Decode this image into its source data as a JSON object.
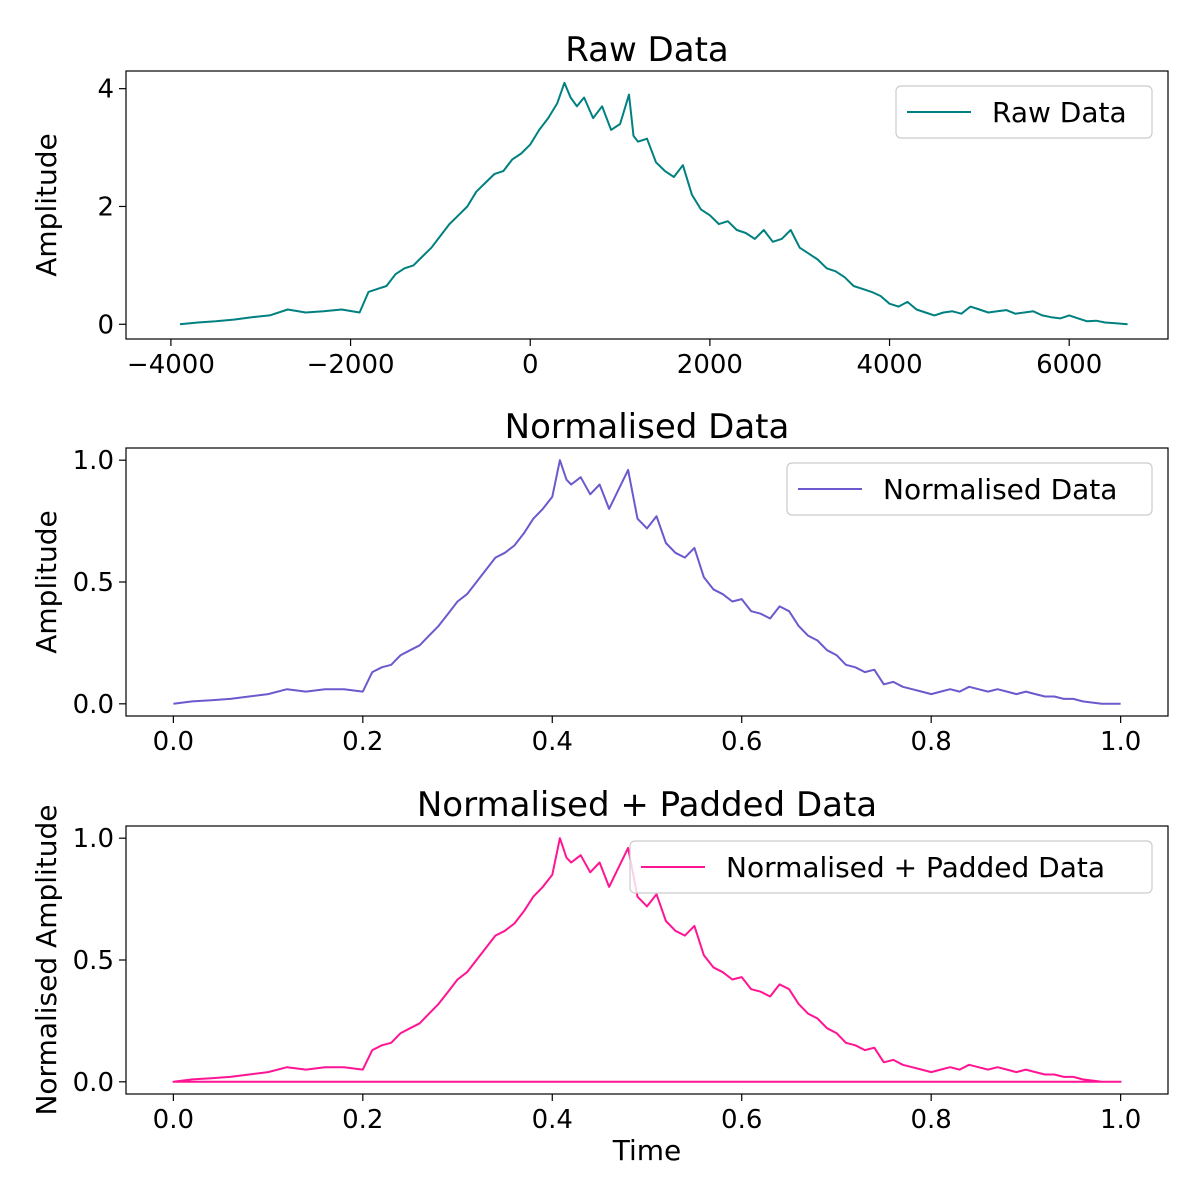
{
  "chart_data": [
    {
      "type": "line",
      "title": "Raw Data",
      "xlabel": "",
      "ylabel": "Amplitude",
      "xlim": [
        -4500,
        7100
      ],
      "ylim": [
        -0.25,
        4.3
      ],
      "xticks": [
        -4000,
        -2000,
        0,
        2000,
        4000,
        6000
      ],
      "xtick_labels": [
        "−4000",
        "−2000",
        "0",
        "2000",
        "4000",
        "6000"
      ],
      "yticks": [
        0,
        2,
        4
      ],
      "ytick_labels": [
        "0",
        "2",
        "4"
      ],
      "legend": "upper right",
      "grid": false,
      "series": [
        {
          "name": "Raw Data",
          "color": "#008080",
          "x": [
            -3900,
            -3700,
            -3500,
            -3300,
            -3100,
            -2900,
            -2700,
            -2500,
            -2300,
            -2100,
            -1900,
            -1800,
            -1700,
            -1600,
            -1500,
            -1400,
            -1300,
            -1200,
            -1100,
            -1000,
            -900,
            -800,
            -700,
            -600,
            -500,
            -400,
            -300,
            -200,
            -100,
            0,
            100,
            200,
            300,
            380,
            450,
            520,
            600,
            700,
            800,
            900,
            1000,
            1100,
            1150,
            1200,
            1300,
            1400,
            1500,
            1600,
            1700,
            1800,
            1900,
            2000,
            2100,
            2200,
            2300,
            2400,
            2500,
            2600,
            2700,
            2800,
            2900,
            3000,
            3100,
            3200,
            3300,
            3400,
            3500,
            3600,
            3700,
            3800,
            3900,
            4000,
            4100,
            4200,
            4300,
            4400,
            4500,
            4600,
            4700,
            4800,
            4900,
            5000,
            5100,
            5200,
            5300,
            5400,
            5500,
            5600,
            5700,
            5800,
            5900,
            6000,
            6100,
            6200,
            6300,
            6400,
            6500,
            6650
          ],
          "y": [
            0.0,
            0.03,
            0.05,
            0.08,
            0.12,
            0.15,
            0.25,
            0.2,
            0.22,
            0.25,
            0.2,
            0.55,
            0.6,
            0.65,
            0.85,
            0.95,
            1.0,
            1.15,
            1.3,
            1.5,
            1.7,
            1.85,
            2.0,
            2.25,
            2.4,
            2.55,
            2.6,
            2.8,
            2.9,
            3.05,
            3.3,
            3.5,
            3.75,
            4.1,
            3.85,
            3.7,
            3.85,
            3.5,
            3.7,
            3.3,
            3.4,
            3.9,
            3.2,
            3.1,
            3.15,
            2.75,
            2.6,
            2.5,
            2.7,
            2.2,
            1.95,
            1.85,
            1.7,
            1.75,
            1.6,
            1.55,
            1.45,
            1.6,
            1.4,
            1.45,
            1.6,
            1.3,
            1.2,
            1.1,
            0.95,
            0.9,
            0.8,
            0.65,
            0.6,
            0.55,
            0.48,
            0.35,
            0.3,
            0.38,
            0.25,
            0.2,
            0.15,
            0.2,
            0.22,
            0.18,
            0.3,
            0.25,
            0.2,
            0.22,
            0.24,
            0.18,
            0.2,
            0.22,
            0.15,
            0.12,
            0.1,
            0.15,
            0.1,
            0.05,
            0.06,
            0.03,
            0.02,
            0.0
          ]
        }
      ]
    },
    {
      "type": "line",
      "title": "Normalised Data",
      "xlabel": "",
      "ylabel": "Amplitude",
      "xlim": [
        -0.05,
        1.05
      ],
      "ylim": [
        -0.05,
        1.05
      ],
      "xticks": [
        0.0,
        0.2,
        0.4,
        0.6,
        0.8,
        1.0
      ],
      "xtick_labels": [
        "0.0",
        "0.2",
        "0.4",
        "0.6",
        "0.8",
        "1.0"
      ],
      "yticks": [
        0.0,
        0.5,
        1.0
      ],
      "ytick_labels": [
        "0.0",
        "0.5",
        "1.0"
      ],
      "legend": "upper right",
      "grid": false,
      "series": [
        {
          "name": "Normalised Data",
          "color": "#6a5acd",
          "x": [
            0.0,
            0.02,
            0.04,
            0.06,
            0.08,
            0.1,
            0.12,
            0.14,
            0.16,
            0.18,
            0.2,
            0.21,
            0.22,
            0.23,
            0.24,
            0.25,
            0.26,
            0.27,
            0.28,
            0.29,
            0.3,
            0.31,
            0.32,
            0.33,
            0.34,
            0.35,
            0.36,
            0.37,
            0.38,
            0.39,
            0.4,
            0.408,
            0.415,
            0.42,
            0.43,
            0.44,
            0.45,
            0.46,
            0.47,
            0.48,
            0.49,
            0.5,
            0.51,
            0.52,
            0.53,
            0.54,
            0.55,
            0.56,
            0.57,
            0.58,
            0.59,
            0.6,
            0.61,
            0.62,
            0.63,
            0.64,
            0.65,
            0.66,
            0.67,
            0.68,
            0.69,
            0.7,
            0.71,
            0.72,
            0.73,
            0.74,
            0.75,
            0.76,
            0.77,
            0.78,
            0.79,
            0.8,
            0.81,
            0.82,
            0.83,
            0.84,
            0.85,
            0.86,
            0.87,
            0.88,
            0.89,
            0.9,
            0.91,
            0.92,
            0.93,
            0.94,
            0.95,
            0.96,
            0.98,
            1.0
          ],
          "y": [
            0.0,
            0.01,
            0.015,
            0.02,
            0.03,
            0.04,
            0.06,
            0.05,
            0.06,
            0.06,
            0.05,
            0.13,
            0.15,
            0.16,
            0.2,
            0.22,
            0.24,
            0.28,
            0.32,
            0.37,
            0.42,
            0.45,
            0.5,
            0.55,
            0.6,
            0.62,
            0.65,
            0.7,
            0.76,
            0.8,
            0.85,
            1.0,
            0.92,
            0.9,
            0.93,
            0.86,
            0.9,
            0.8,
            0.88,
            0.96,
            0.76,
            0.72,
            0.77,
            0.66,
            0.62,
            0.6,
            0.64,
            0.52,
            0.47,
            0.45,
            0.42,
            0.43,
            0.38,
            0.37,
            0.35,
            0.4,
            0.38,
            0.32,
            0.28,
            0.26,
            0.22,
            0.2,
            0.16,
            0.15,
            0.13,
            0.14,
            0.08,
            0.09,
            0.07,
            0.06,
            0.05,
            0.04,
            0.05,
            0.06,
            0.05,
            0.07,
            0.06,
            0.05,
            0.06,
            0.05,
            0.04,
            0.05,
            0.04,
            0.03,
            0.03,
            0.02,
            0.02,
            0.01,
            0.0,
            0.0
          ]
        }
      ]
    },
    {
      "type": "line",
      "title": "Normalised + Padded Data",
      "xlabel": "Time",
      "ylabel": "Normalised Amplitude",
      "xlim": [
        -0.05,
        1.05
      ],
      "ylim": [
        -0.05,
        1.05
      ],
      "xticks": [
        0.0,
        0.2,
        0.4,
        0.6,
        0.8,
        1.0
      ],
      "xtick_labels": [
        "0.0",
        "0.2",
        "0.4",
        "0.6",
        "0.8",
        "1.0"
      ],
      "yticks": [
        0.0,
        0.5,
        1.0
      ],
      "ytick_labels": [
        "0.0",
        "0.5",
        "1.0"
      ],
      "legend": "upper right",
      "grid": false,
      "series": [
        {
          "name": "Normalised + Padded Data",
          "color": "#ff1493",
          "x": [
            0.0,
            0.02,
            0.04,
            0.06,
            0.08,
            0.1,
            0.12,
            0.14,
            0.16,
            0.18,
            0.2,
            0.21,
            0.22,
            0.23,
            0.24,
            0.25,
            0.26,
            0.27,
            0.28,
            0.29,
            0.3,
            0.31,
            0.32,
            0.33,
            0.34,
            0.35,
            0.36,
            0.37,
            0.38,
            0.39,
            0.4,
            0.408,
            0.415,
            0.42,
            0.43,
            0.44,
            0.45,
            0.46,
            0.47,
            0.48,
            0.49,
            0.5,
            0.51,
            0.52,
            0.53,
            0.54,
            0.55,
            0.56,
            0.57,
            0.58,
            0.59,
            0.6,
            0.61,
            0.62,
            0.63,
            0.64,
            0.65,
            0.66,
            0.67,
            0.68,
            0.69,
            0.7,
            0.71,
            0.72,
            0.73,
            0.74,
            0.75,
            0.76,
            0.77,
            0.78,
            0.79,
            0.8,
            0.81,
            0.82,
            0.83,
            0.84,
            0.85,
            0.86,
            0.87,
            0.88,
            0.89,
            0.9,
            0.91,
            0.92,
            0.93,
            0.94,
            0.95,
            0.96,
            0.98,
            1.0,
            0.0,
            1.0
          ],
          "y": [
            0.0,
            0.01,
            0.015,
            0.02,
            0.03,
            0.04,
            0.06,
            0.05,
            0.06,
            0.06,
            0.05,
            0.13,
            0.15,
            0.16,
            0.2,
            0.22,
            0.24,
            0.28,
            0.32,
            0.37,
            0.42,
            0.45,
            0.5,
            0.55,
            0.6,
            0.62,
            0.65,
            0.7,
            0.76,
            0.8,
            0.85,
            1.0,
            0.92,
            0.9,
            0.93,
            0.86,
            0.9,
            0.8,
            0.88,
            0.96,
            0.76,
            0.72,
            0.77,
            0.66,
            0.62,
            0.6,
            0.64,
            0.52,
            0.47,
            0.45,
            0.42,
            0.43,
            0.38,
            0.37,
            0.35,
            0.4,
            0.38,
            0.32,
            0.28,
            0.26,
            0.22,
            0.2,
            0.16,
            0.15,
            0.13,
            0.14,
            0.08,
            0.09,
            0.07,
            0.06,
            0.05,
            0.04,
            0.05,
            0.06,
            0.05,
            0.07,
            0.06,
            0.05,
            0.06,
            0.05,
            0.04,
            0.05,
            0.04,
            0.03,
            0.03,
            0.02,
            0.02,
            0.01,
            0.0,
            0.0,
            0.0,
            0.0
          ]
        }
      ]
    }
  ]
}
